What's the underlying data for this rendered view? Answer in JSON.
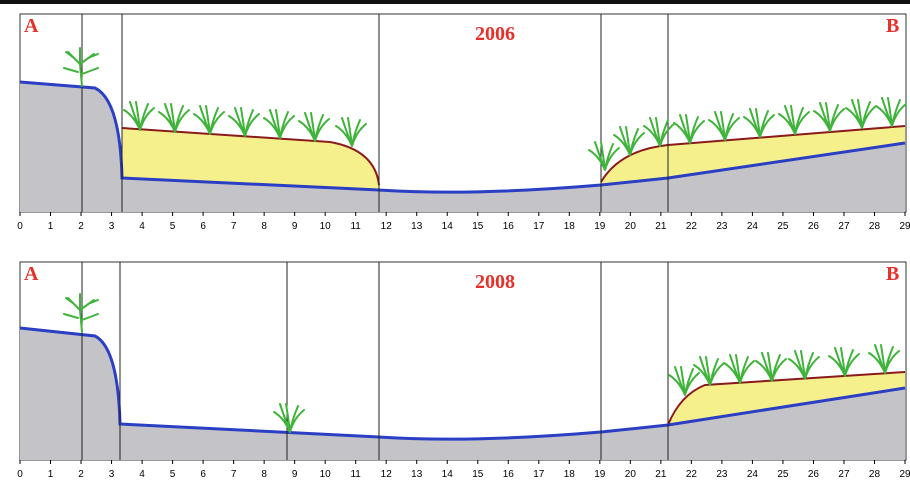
{
  "panels": [
    {
      "label_left": "A",
      "label_right": "B",
      "year": "2006",
      "ticks": [
        0,
        1,
        2,
        3,
        4,
        5,
        6,
        7,
        8,
        9,
        10,
        11,
        12,
        13,
        14,
        15,
        16,
        17,
        18,
        19,
        20,
        21,
        22,
        23,
        24,
        25,
        26,
        27,
        28,
        29
      ]
    },
    {
      "label_left": "A",
      "label_right": "B",
      "year": "2008",
      "ticks": [
        0,
        1,
        2,
        3,
        4,
        5,
        6,
        7,
        8,
        9,
        10,
        11,
        12,
        13,
        14,
        15,
        16,
        17,
        18,
        19,
        20,
        21,
        22,
        23,
        24,
        25,
        26,
        27,
        28,
        29
      ]
    }
  ]
}
